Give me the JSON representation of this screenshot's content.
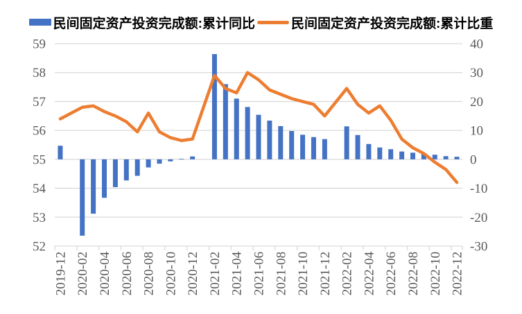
{
  "chart_data": {
    "type": "combo",
    "title": "",
    "legend_position": "top",
    "grid": "horizontal",
    "categories": [
      "2019-12",
      "2020-01",
      "2020-02",
      "2020-03",
      "2020-04",
      "2020-05",
      "2020-06",
      "2020-07",
      "2020-08",
      "2020-09",
      "2020-10",
      "2020-11",
      "2020-12",
      "2021-01",
      "2021-02",
      "2021-03",
      "2021-04",
      "2021-05",
      "2021-06",
      "2021-07",
      "2021-08",
      "2021-09",
      "2021-10",
      "2021-11",
      "2021-12",
      "2022-01",
      "2022-02",
      "2022-03",
      "2022-04",
      "2022-05",
      "2022-06",
      "2022-07",
      "2022-08",
      "2022-09",
      "2022-10",
      "2022-11",
      "2022-12"
    ],
    "x_tick_label_interval": 2,
    "series": [
      {
        "name": "民间固定资产投资完成额:累计同比",
        "type": "bar",
        "axis": "right",
        "color": "#4472C4",
        "values": [
          4.7,
          null,
          -26.4,
          -18.8,
          -13.3,
          -9.6,
          -7.3,
          -5.7,
          -2.8,
          -1.5,
          -0.7,
          0.2,
          1.0,
          null,
          36.4,
          26.0,
          21.0,
          18.1,
          15.4,
          13.4,
          11.5,
          9.8,
          8.5,
          7.7,
          7.0,
          null,
          11.4,
          8.4,
          5.3,
          4.1,
          3.5,
          2.7,
          2.3,
          2.0,
          1.6,
          1.1,
          0.9
        ]
      },
      {
        "name": "民间固定资产投资完成额:累计比重",
        "type": "line",
        "axis": "left",
        "color": "#ED7D31",
        "values": [
          56.4,
          null,
          56.8,
          56.85,
          56.65,
          56.5,
          56.3,
          55.95,
          56.6,
          55.95,
          55.75,
          55.65,
          55.7,
          null,
          57.9,
          57.45,
          57.3,
          58.0,
          57.75,
          57.4,
          57.25,
          57.1,
          57.0,
          56.9,
          56.5,
          null,
          57.45,
          56.9,
          56.6,
          56.85,
          56.35,
          55.7,
          55.4,
          55.2,
          54.9,
          54.65,
          54.2
        ]
      }
    ],
    "left_axis": {
      "min": 52,
      "max": 59,
      "ticks": [
        52,
        53,
        54,
        55,
        56,
        57,
        58,
        59
      ]
    },
    "right_axis": {
      "min": -30,
      "max": 40,
      "ticks": [
        -30,
        -20,
        -10,
        0,
        10,
        20,
        30,
        40
      ]
    },
    "colors": {
      "grid": "#D9D9D9",
      "tick_text": "#595959",
      "legend_text": "#000000",
      "bar": "#4472C4",
      "line": "#ED7D31"
    }
  }
}
